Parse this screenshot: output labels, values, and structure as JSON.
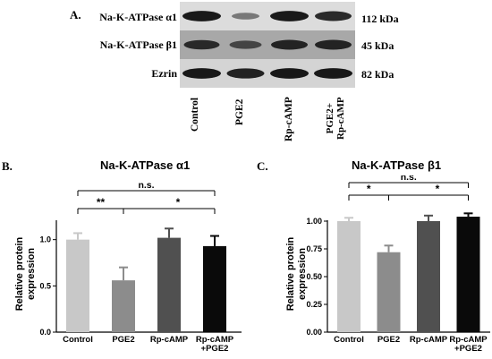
{
  "panelA": {
    "letter": "A.",
    "rows": [
      {
        "label": "Na-K-ATPase α1",
        "kda": "112 kDa",
        "intensities": [
          0.95,
          0.35,
          0.95,
          0.85
        ],
        "bg": "#dcdcdc"
      },
      {
        "label": "Na-K-ATPase β1",
        "kda": "45 kDa",
        "intensities": [
          0.8,
          0.6,
          0.85,
          0.85
        ],
        "bg": "#a8a8a8"
      },
      {
        "label": "Ezrin",
        "kda": "82 kDa",
        "intensities": [
          0.95,
          0.9,
          0.95,
          0.95
        ],
        "bg": "#d4d4d4"
      }
    ],
    "lanes": [
      "Control",
      "PGE2",
      "Rp-cAMP"
    ],
    "lane4_line1": "PGE2+",
    "lane4_line2": "Rp-cAMP"
  },
  "chart_data": [
    {
      "type": "bar",
      "panel": "B.",
      "title": "Na-K-ATPase α1",
      "ylabel": "Relative protein expression",
      "ylim": [
        0,
        1.5
      ],
      "yticks": [
        "0.0",
        "0.5",
        "1.0"
      ],
      "categories": [
        "Control",
        "PGE2",
        "Rp-cAMP",
        "Rp-cAMP +PGE2"
      ],
      "values": [
        1.0,
        0.56,
        1.02,
        0.93
      ],
      "errors": [
        0.07,
        0.14,
        0.1,
        0.11
      ],
      "colors": [
        "#c8c8c8",
        "#8c8c8c",
        "#505050",
        "#0a0a0a"
      ],
      "sig_brackets": [
        {
          "from": 0,
          "to": 1,
          "label": "**"
        },
        {
          "from": 1,
          "to": 3,
          "label": "*"
        },
        {
          "from": 0,
          "to": 3,
          "label": "n.s."
        }
      ]
    },
    {
      "type": "bar",
      "panel": "C.",
      "title": "Na-K-ATPase β1",
      "ylabel": "Relative protein expression",
      "ylim": [
        0,
        1.25
      ],
      "yticks": [
        "0.00",
        "0.25",
        "0.50",
        "0.75",
        "1.00"
      ],
      "categories": [
        "Control",
        "PGE2",
        "Rp-cAMP",
        "Rp-cAMP +PGE2"
      ],
      "values": [
        1.0,
        0.72,
        1.0,
        1.04
      ],
      "errors": [
        0.03,
        0.06,
        0.05,
        0.03
      ],
      "colors": [
        "#c8c8c8",
        "#8c8c8c",
        "#505050",
        "#0a0a0a"
      ],
      "sig_brackets": [
        {
          "from": 0,
          "to": 1,
          "label": "*"
        },
        {
          "from": 1,
          "to": 3,
          "label": "*"
        },
        {
          "from": 0,
          "to": 3,
          "label": "n.s."
        }
      ]
    }
  ]
}
